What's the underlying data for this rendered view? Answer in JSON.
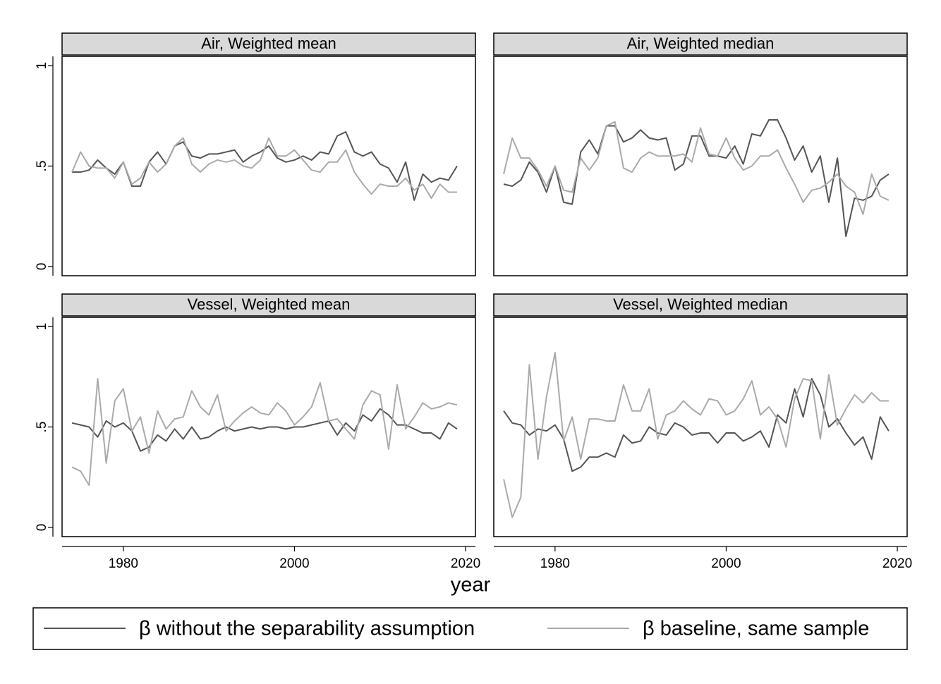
{
  "chart_data": [
    {
      "type": "line",
      "title": "Air, Weighted mean",
      "x": [
        1974,
        1975,
        1976,
        1977,
        1978,
        1979,
        1980,
        1981,
        1982,
        1983,
        1984,
        1985,
        1986,
        1987,
        1988,
        1989,
        1990,
        1991,
        1992,
        1993,
        1994,
        1995,
        1996,
        1997,
        1998,
        1999,
        2000,
        2001,
        2002,
        2003,
        2004,
        2005,
        2006,
        2007,
        2008,
        2009,
        2010,
        2011,
        2012,
        2013,
        2014,
        2015,
        2016,
        2017,
        2018,
        2019
      ],
      "xlim": [
        1972.84,
        2021.15
      ],
      "ylim": [
        -0.046,
        1.046
      ],
      "yticks": [
        0,
        {
          "value": 0.5,
          "label": ".5"
        },
        1
      ],
      "series": [
        {
          "name": "β without the separability assumption",
          "color": "#555555",
          "values": [
            0.47,
            0.47,
            0.48,
            0.53,
            0.49,
            0.46,
            0.52,
            0.4,
            0.4,
            0.52,
            0.57,
            0.51,
            0.6,
            0.62,
            0.55,
            0.54,
            0.56,
            0.56,
            0.57,
            0.58,
            0.52,
            0.55,
            0.57,
            0.6,
            0.54,
            0.52,
            0.53,
            0.55,
            0.53,
            0.57,
            0.56,
            0.65,
            0.67,
            0.57,
            0.55,
            0.57,
            0.51,
            0.49,
            0.42,
            0.52,
            0.33,
            0.46,
            0.42,
            0.44,
            0.43,
            0.5
          ]
        },
        {
          "name": "β baseline, same sample",
          "color": "#aaaaaa",
          "values": [
            0.47,
            0.57,
            0.5,
            0.49,
            0.49,
            0.44,
            0.52,
            0.41,
            0.44,
            0.52,
            0.47,
            0.51,
            0.6,
            0.64,
            0.51,
            0.47,
            0.51,
            0.53,
            0.52,
            0.53,
            0.5,
            0.49,
            0.53,
            0.64,
            0.55,
            0.55,
            0.58,
            0.53,
            0.48,
            0.47,
            0.52,
            0.52,
            0.58,
            0.47,
            0.41,
            0.36,
            0.41,
            0.4,
            0.4,
            0.44,
            0.38,
            0.41,
            0.34,
            0.41,
            0.37,
            0.37
          ]
        }
      ]
    },
    {
      "type": "line",
      "title": "Air, Weighted median",
      "x": [
        1974,
        1975,
        1976,
        1977,
        1978,
        1979,
        1980,
        1981,
        1982,
        1983,
        1984,
        1985,
        1986,
        1987,
        1988,
        1989,
        1990,
        1991,
        1992,
        1993,
        1994,
        1995,
        1996,
        1997,
        1998,
        1999,
        2000,
        2001,
        2002,
        2003,
        2004,
        2005,
        2006,
        2007,
        2008,
        2009,
        2010,
        2011,
        2012,
        2013,
        2014,
        2015,
        2016,
        2017,
        2018,
        2019
      ],
      "xlim": [
        1972.84,
        2021.15
      ],
      "ylim": [
        -0.046,
        1.046
      ],
      "series": [
        {
          "color": "#555555",
          "values": [
            0.41,
            0.4,
            0.43,
            0.52,
            0.47,
            0.37,
            0.5,
            0.32,
            0.31,
            0.57,
            0.63,
            0.56,
            0.7,
            0.7,
            0.62,
            0.64,
            0.68,
            0.64,
            0.63,
            0.64,
            0.48,
            0.51,
            0.65,
            0.65,
            0.55,
            0.55,
            0.54,
            0.6,
            0.51,
            0.66,
            0.65,
            0.73,
            0.73,
            0.64,
            0.53,
            0.6,
            0.47,
            0.55,
            0.32,
            0.54,
            0.15,
            0.34,
            0.33,
            0.35,
            0.43,
            0.46
          ]
        },
        {
          "color": "#aaaaaa",
          "values": [
            0.46,
            0.64,
            0.54,
            0.54,
            0.48,
            0.4,
            0.5,
            0.38,
            0.37,
            0.54,
            0.48,
            0.54,
            0.7,
            0.72,
            0.49,
            0.47,
            0.54,
            0.57,
            0.55,
            0.55,
            0.55,
            0.56,
            0.52,
            0.69,
            0.56,
            0.55,
            0.64,
            0.54,
            0.48,
            0.5,
            0.55,
            0.55,
            0.58,
            0.49,
            0.41,
            0.32,
            0.38,
            0.39,
            0.42,
            0.46,
            0.4,
            0.37,
            0.26,
            0.46,
            0.35,
            0.33
          ]
        }
      ]
    },
    {
      "type": "line",
      "title": "Vessel, Weighted mean",
      "xlabel": "year",
      "x": [
        1974,
        1975,
        1976,
        1977,
        1978,
        1979,
        1980,
        1981,
        1982,
        1983,
        1984,
        1985,
        1986,
        1987,
        1988,
        1989,
        1990,
        1991,
        1992,
        1993,
        1994,
        1995,
        1996,
        1997,
        1998,
        1999,
        2000,
        2001,
        2002,
        2003,
        2004,
        2005,
        2006,
        2007,
        2008,
        2009,
        2010,
        2011,
        2012,
        2013,
        2014,
        2015,
        2016,
        2017,
        2018,
        2019
      ],
      "xlim": [
        1972.84,
        2021.15
      ],
      "ylim": [
        -0.046,
        1.046
      ],
      "xticks": [
        1980,
        2000,
        2020
      ],
      "yticks": [
        0,
        {
          "value": 0.5,
          "label": ".5"
        },
        1
      ],
      "series": [
        {
          "color": "#555555",
          "values": [
            0.52,
            0.51,
            0.5,
            0.45,
            0.53,
            0.5,
            0.52,
            0.48,
            0.38,
            0.4,
            0.46,
            0.43,
            0.49,
            0.44,
            0.5,
            0.44,
            0.45,
            0.48,
            0.5,
            0.48,
            0.49,
            0.5,
            0.49,
            0.5,
            0.5,
            0.49,
            0.5,
            0.5,
            0.51,
            0.52,
            0.53,
            0.46,
            0.52,
            0.48,
            0.56,
            0.53,
            0.59,
            0.56,
            0.51,
            0.51,
            0.49,
            0.47,
            0.47,
            0.44,
            0.52,
            0.49
          ]
        },
        {
          "color": "#aaaaaa",
          "values": [
            0.3,
            0.28,
            0.21,
            0.74,
            0.32,
            0.63,
            0.69,
            0.48,
            0.55,
            0.37,
            0.58,
            0.49,
            0.54,
            0.55,
            0.68,
            0.6,
            0.56,
            0.66,
            0.48,
            0.53,
            0.57,
            0.6,
            0.57,
            0.56,
            0.62,
            0.58,
            0.51,
            0.55,
            0.6,
            0.72,
            0.53,
            0.54,
            0.49,
            0.44,
            0.61,
            0.68,
            0.66,
            0.39,
            0.71,
            0.49,
            0.55,
            0.62,
            0.59,
            0.6,
            0.62,
            0.61
          ]
        }
      ]
    },
    {
      "type": "line",
      "title": "Vessel, Weighted median",
      "x": [
        1974,
        1975,
        1976,
        1977,
        1978,
        1979,
        1980,
        1981,
        1982,
        1983,
        1984,
        1985,
        1986,
        1987,
        1988,
        1989,
        1990,
        1991,
        1992,
        1993,
        1994,
        1995,
        1996,
        1997,
        1998,
        1999,
        2000,
        2001,
        2002,
        2003,
        2004,
        2005,
        2006,
        2007,
        2008,
        2009,
        2010,
        2011,
        2012,
        2013,
        2014,
        2015,
        2016,
        2017,
        2018,
        2019
      ],
      "xlim": [
        1972.84,
        2021.15
      ],
      "ylim": [
        -0.046,
        1.046
      ],
      "xticks": [
        1980,
        2000,
        2020
      ],
      "series": [
        {
          "color": "#555555",
          "values": [
            0.58,
            0.52,
            0.51,
            0.46,
            0.49,
            0.48,
            0.51,
            0.44,
            0.28,
            0.3,
            0.35,
            0.35,
            0.37,
            0.35,
            0.46,
            0.42,
            0.43,
            0.5,
            0.47,
            0.46,
            0.52,
            0.5,
            0.46,
            0.47,
            0.47,
            0.42,
            0.47,
            0.47,
            0.43,
            0.45,
            0.48,
            0.4,
            0.56,
            0.52,
            0.69,
            0.55,
            0.74,
            0.66,
            0.5,
            0.54,
            0.47,
            0.41,
            0.45,
            0.34,
            0.55,
            0.48
          ]
        },
        {
          "color": "#aaaaaa",
          "values": [
            0.24,
            0.05,
            0.15,
            0.81,
            0.34,
            0.65,
            0.87,
            0.43,
            0.55,
            0.34,
            0.54,
            0.54,
            0.53,
            0.53,
            0.71,
            0.58,
            0.58,
            0.69,
            0.44,
            0.56,
            0.58,
            0.63,
            0.59,
            0.56,
            0.64,
            0.63,
            0.56,
            0.58,
            0.64,
            0.73,
            0.56,
            0.6,
            0.54,
            0.4,
            0.64,
            0.74,
            0.73,
            0.44,
            0.76,
            0.51,
            0.59,
            0.66,
            0.62,
            0.67,
            0.63,
            0.63
          ]
        }
      ]
    }
  ]
}
